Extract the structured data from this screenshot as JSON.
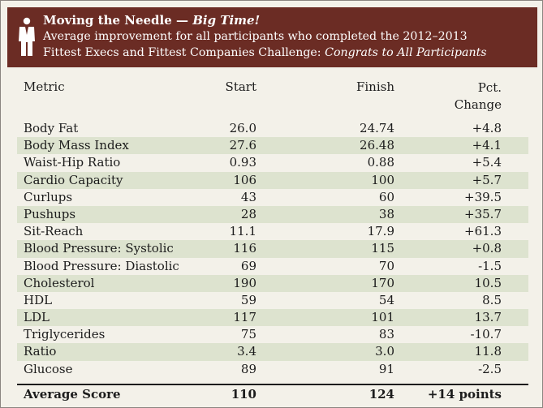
{
  "header": {
    "title": "Moving the Needle — ",
    "title_emphasis": "Big Time!",
    "subtitle_line1": "Average improvement for all participants who completed the 2012–2013",
    "subtitle_line2": "Fittest Execs and Fittest Companies Challenge: ",
    "subtitle_emphasis": "Congrats to All Participants",
    "icon": "person-in-suit-icon",
    "header_color": "#6b2c24",
    "shade_color": "#dde3cf"
  },
  "table": {
    "columns": {
      "metric": "Metric",
      "start": "Start",
      "finish": "Finish",
      "pct_line1": "Pct.",
      "pct_line2": "Change"
    },
    "rows": [
      {
        "metric": "Body Fat",
        "start": "26.0",
        "finish": "24.74",
        "pct": "+4.8"
      },
      {
        "metric": "Body Mass Index",
        "start": "27.6",
        "finish": "26.48",
        "pct": "+4.1"
      },
      {
        "metric": "Waist-Hip Ratio",
        "start": "0.93",
        "finish": "0.88",
        "pct": "+5.4"
      },
      {
        "metric": "Cardio Capacity",
        "start": "106",
        "finish": "100",
        "pct": "+5.7"
      },
      {
        "metric": "Curlups",
        "start": "43",
        "finish": "60",
        "pct": "+39.5"
      },
      {
        "metric": "Pushups",
        "start": "28",
        "finish": "38",
        "pct": "+35.7"
      },
      {
        "metric": "Sit-Reach",
        "start": "11.1",
        "finish": "17.9",
        "pct": "+61.3"
      },
      {
        "metric": "Blood Pressure: Systolic",
        "start": "116",
        "finish": "115",
        "pct": "+0.8"
      },
      {
        "metric": "Blood Pressure: Diastolic",
        "start": "69",
        "finish": "70",
        "pct": "-1.5"
      },
      {
        "metric": "Cholesterol",
        "start": "190",
        "finish": "170",
        "pct": "10.5"
      },
      {
        "metric": "HDL",
        "start": "59",
        "finish": "54",
        "pct": "8.5"
      },
      {
        "metric": "LDL",
        "start": "117",
        "finish": "101",
        "pct": "13.7"
      },
      {
        "metric": "Triglycerides",
        "start": "75",
        "finish": "83",
        "pct": "-10.7"
      },
      {
        "metric": "Ratio",
        "start": "3.4",
        "finish": "3.0",
        "pct": "11.8"
      },
      {
        "metric": "Glucose",
        "start": "89",
        "finish": "91",
        "pct": "-2.5"
      }
    ],
    "average": {
      "metric": "Average Score",
      "start": "110",
      "finish": "124",
      "pct": "+14 points"
    }
  }
}
